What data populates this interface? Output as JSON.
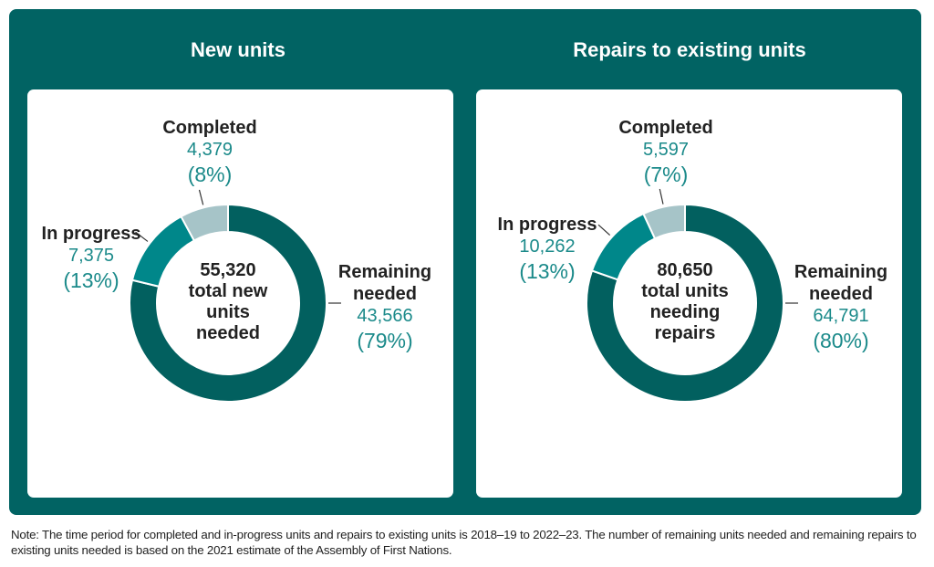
{
  "chart_data": [
    {
      "type": "donut",
      "title": "New units",
      "center_value": "55,320",
      "center_label": "total new units needed",
      "slices": [
        {
          "label": "Remaining needed",
          "value": "43,566",
          "percent": "(79%)",
          "raw": 43566,
          "color": "#02605f"
        },
        {
          "label": "In progress",
          "value": "7,375",
          "percent": "(13%)",
          "raw": 7375,
          "color": "#00878a"
        },
        {
          "label": "Completed",
          "value": "4,379",
          "percent": "(8%)",
          "raw": 4379,
          "color": "#a6c4c8"
        }
      ]
    },
    {
      "type": "donut",
      "title": "Repairs to existing units",
      "center_value": "80,650",
      "center_label": "total units needing repairs",
      "slices": [
        {
          "label": "Remaining needed",
          "value": "64,791",
          "percent": "(80%)",
          "raw": 64791,
          "color": "#02605f"
        },
        {
          "label": "In progress",
          "value": "10,262",
          "percent": "(13%)",
          "raw": 10262,
          "color": "#00878a"
        },
        {
          "label": "Completed",
          "value": "5,597",
          "percent": "(7%)",
          "raw": 5597,
          "color": "#a6c4c8"
        }
      ]
    }
  ],
  "note": "Note: The time period for completed and in-progress units and repairs to existing units is 2018–19 to 2022–23. The number of remaining units needed and remaining repairs to existing units needed is based on the 2021 estimate of the Assembly of First Nations."
}
